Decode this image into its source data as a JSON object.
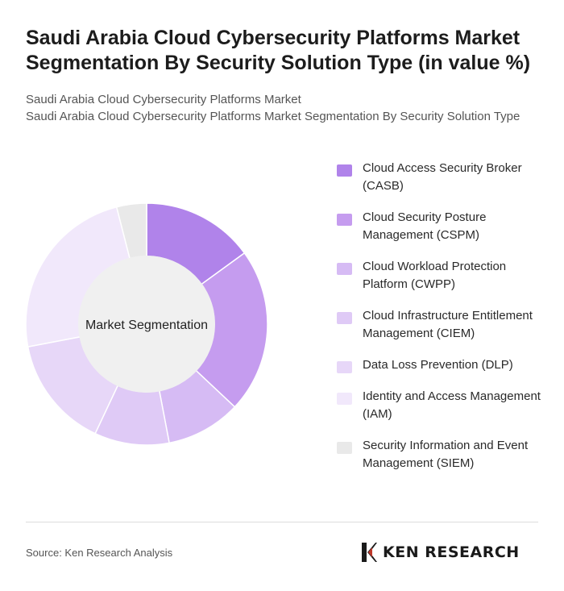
{
  "header": {
    "title": "Saudi Arabia Cloud Cybersecurity Platforms Market Segmentation By Security Solution Type (in value %)",
    "subtitle_line1": "Saudi Arabia Cloud Cybersecurity Platforms Market",
    "subtitle_line2": "Saudi Arabia Cloud Cybersecurity Platforms Market Segmentation By Security Solution Type"
  },
  "chart_data": {
    "type": "pie",
    "variant": "donut",
    "center_label": "Market Segmentation",
    "legend_position": "right",
    "categories": [
      "Cloud Access Security Broker (CASB)",
      "Cloud Security Posture Management (CSPM)",
      "Cloud Workload Protection Platform (CWPP)",
      "Cloud Infrastructure Entitlement Management (CIEM)",
      "Data Loss Prevention (DLP)",
      "Identity and Access Management (IAM)",
      "Security Information and Event Management (SIEM)"
    ],
    "values": [
      15,
      22,
      10,
      10,
      15,
      24,
      4
    ],
    "colors": [
      "#b083ea",
      "#c59cef",
      "#d6bbf4",
      "#dfcaf6",
      "#e7d7f8",
      "#f1e8fb",
      "#e9e9e9"
    ]
  },
  "footer": {
    "source": "Source: Ken Research Analysis",
    "logo_text": "KEN RESEARCH"
  }
}
